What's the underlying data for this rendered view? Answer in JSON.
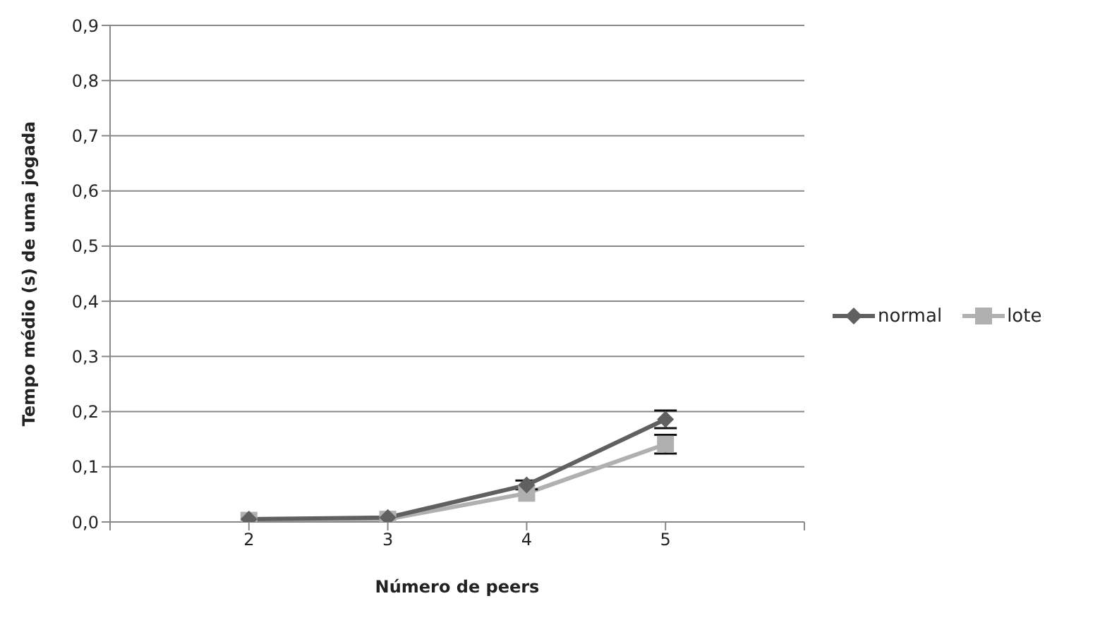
{
  "chart_data": {
    "type": "line",
    "xlabel": "Número de peers",
    "ylabel": "Tempo médio (s) de uma jogada",
    "categories": [
      null,
      "2",
      "3",
      "4",
      "5",
      null
    ],
    "series": [
      {
        "name": "normal",
        "color": "#606060",
        "marker": "diamond",
        "values": [
          null,
          0.005,
          0.008,
          0.067,
          0.186,
          null
        ],
        "errors": [
          null,
          null,
          null,
          0.008,
          0.016,
          null
        ]
      },
      {
        "name": "lote",
        "color": "#b0b0b0",
        "marker": "square",
        "values": [
          null,
          0.003,
          0.005,
          0.052,
          0.141,
          null
        ],
        "errors": [
          null,
          null,
          null,
          null,
          0.017,
          null
        ]
      }
    ],
    "ylim": [
      0,
      0.9
    ],
    "yticks": [
      {
        "value": 0,
        "label": "0,0"
      },
      {
        "value": 0.1,
        "label": "0,1"
      },
      {
        "value": 0.2,
        "label": "0,2"
      },
      {
        "value": 0.3,
        "label": "0,3"
      },
      {
        "value": 0.4,
        "label": "0,4"
      },
      {
        "value": 0.5,
        "label": "0,5"
      },
      {
        "value": 0.6,
        "label": "0,6"
      },
      {
        "value": 0.7,
        "label": "0,7"
      },
      {
        "value": 0.8,
        "label": "0,8"
      },
      {
        "value": 0.9,
        "label": "0,9"
      }
    ],
    "grid": "y",
    "legend": "right",
    "line_style": "solid"
  }
}
